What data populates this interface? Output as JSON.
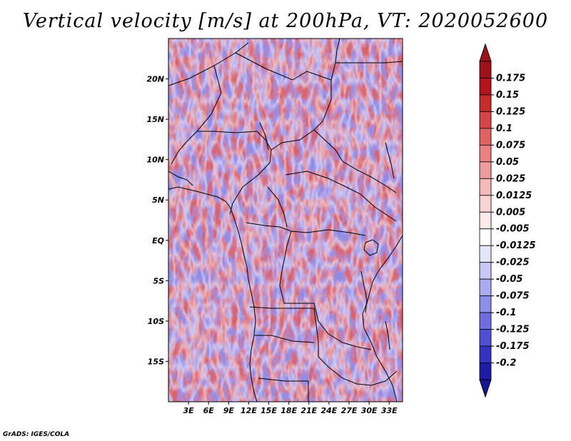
{
  "title": "Vertical velocity [m/s] at 200hPa, VT: 2020052600",
  "footer": "GrADS: IGES/COLA",
  "map": {
    "lon_range": [
      0,
      35
    ],
    "lat_range": [
      -20,
      25
    ],
    "lat_ticks": [
      {
        "value": 20,
        "label": "20N"
      },
      {
        "value": 15,
        "label": "15N"
      },
      {
        "value": 10,
        "label": "10N"
      },
      {
        "value": 5,
        "label": "5N"
      },
      {
        "value": 0,
        "label": "EQ"
      },
      {
        "value": -5,
        "label": "5S"
      },
      {
        "value": -10,
        "label": "10S"
      },
      {
        "value": -15,
        "label": "15S"
      }
    ],
    "lon_ticks": [
      {
        "value": 3,
        "label": "3E"
      },
      {
        "value": 6,
        "label": "6E"
      },
      {
        "value": 9,
        "label": "9E"
      },
      {
        "value": 12,
        "label": "12E"
      },
      {
        "value": 15,
        "label": "15E"
      },
      {
        "value": 18,
        "label": "18E"
      },
      {
        "value": 21,
        "label": "21E"
      },
      {
        "value": 24,
        "label": "24E"
      },
      {
        "value": 27,
        "label": "27E"
      },
      {
        "value": 30,
        "label": "30E"
      },
      {
        "value": 33,
        "label": "33E"
      }
    ]
  },
  "colorbar": {
    "levels": [
      {
        "label": "0.175",
        "color": "#b5121b"
      },
      {
        "label": "0.15",
        "color": "#c92a2a"
      },
      {
        "label": "0.125",
        "color": "#d94545"
      },
      {
        "label": "0.1",
        "color": "#e26262"
      },
      {
        "label": "0.075",
        "color": "#ea8080"
      },
      {
        "label": "0.05",
        "color": "#f19c9c"
      },
      {
        "label": "0.025",
        "color": "#f6b8b8"
      },
      {
        "label": "0.0125",
        "color": "#fad4d4"
      },
      {
        "label": "0.005",
        "color": "#fde9e9"
      },
      {
        "label": "-0.005",
        "color": "#ffffff"
      },
      {
        "label": "-0.0125",
        "color": "#e4e4fc"
      },
      {
        "label": "-0.025",
        "color": "#c8c8f8"
      },
      {
        "label": "-0.05",
        "color": "#aaaaf2"
      },
      {
        "label": "-0.075",
        "color": "#8c8ceb"
      },
      {
        "label": "-0.1",
        "color": "#6e6ee2"
      },
      {
        "label": "-0.125",
        "color": "#5050d6"
      },
      {
        "label": "-0.175",
        "color": "#3434c4"
      },
      {
        "label": "-0.2",
        "color": "#1c1ca8"
      }
    ],
    "top_color": "#a01018",
    "bottom_color": "#14149a"
  }
}
